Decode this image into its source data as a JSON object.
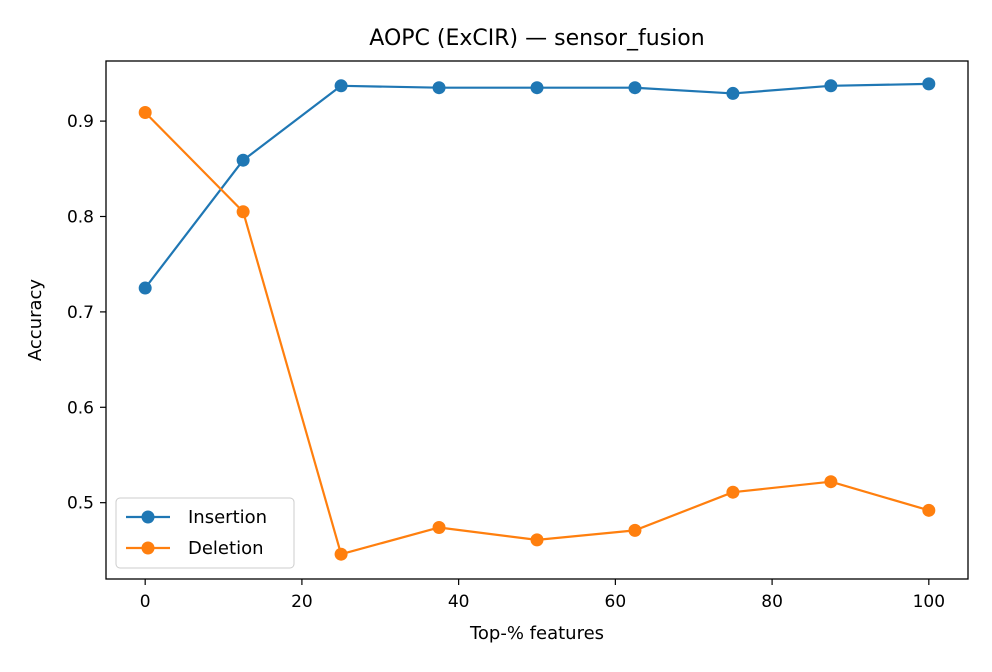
{
  "chart_data": {
    "type": "line",
    "title": "AOPC (ExCIR) — sensor_fusion",
    "xlabel": "Top-% features",
    "ylabel": "Accuracy",
    "xlim": [
      -5,
      105
    ],
    "ylim": [
      0.42,
      0.963
    ],
    "xticks": [
      0,
      20,
      40,
      60,
      80,
      100
    ],
    "yticks": [
      0.5,
      0.6,
      0.7,
      0.8,
      0.9
    ],
    "xtick_labels": [
      "0",
      "20",
      "40",
      "60",
      "80",
      "100"
    ],
    "ytick_labels": [
      "0.5",
      "0.6",
      "0.7",
      "0.8",
      "0.9"
    ],
    "grid": false,
    "legend_position": "lower-left",
    "x": [
      0,
      12.5,
      25,
      37.5,
      50,
      62.5,
      75,
      87.5,
      100
    ],
    "series": [
      {
        "name": "Insertion",
        "color": "#1f77b4",
        "values": [
          0.725,
          0.859,
          0.937,
          0.935,
          0.935,
          0.935,
          0.929,
          0.937,
          0.939
        ]
      },
      {
        "name": "Deletion",
        "color": "#ff7f0e",
        "values": [
          0.909,
          0.805,
          0.446,
          0.474,
          0.461,
          0.471,
          0.511,
          0.522,
          0.492
        ]
      }
    ]
  }
}
